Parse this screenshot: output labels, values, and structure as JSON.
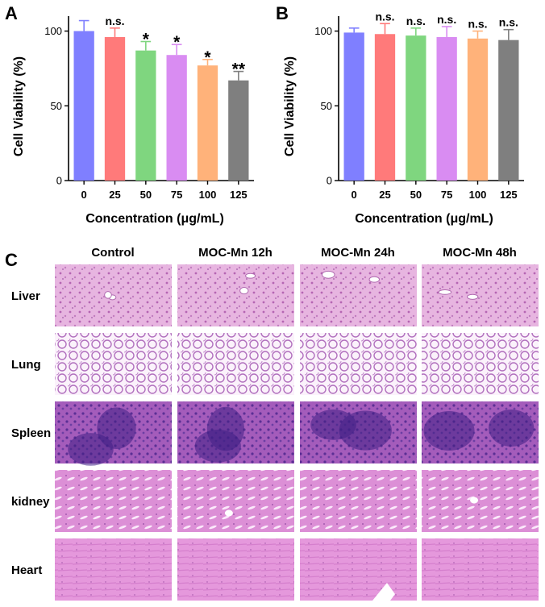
{
  "panel_labels": {
    "a": "A",
    "b": "B",
    "c": "C"
  },
  "chart_data": [
    {
      "type": "bar",
      "panel": "A",
      "categories": [
        "0",
        "25",
        "50",
        "75",
        "100",
        "125"
      ],
      "values": [
        100,
        96,
        87,
        84,
        77,
        67
      ],
      "errors": [
        7,
        6,
        6,
        7,
        4,
        6
      ],
      "significance": [
        "",
        "n.s.",
        "*",
        "*",
        "*",
        "**"
      ],
      "colors": [
        "#7f7fff",
        "#ff7a7a",
        "#7fd67f",
        "#d98cf2",
        "#ffb27a",
        "#7f7f7f"
      ],
      "title": "",
      "xlabel": "Concentration (μg/mL)",
      "ylabel": "Cell Viability (%)",
      "ylim": [
        0,
        110
      ],
      "yticks": [
        "0",
        "50",
        "100"
      ],
      "grid": false
    },
    {
      "type": "bar",
      "panel": "B",
      "categories": [
        "0",
        "25",
        "50",
        "75",
        "100",
        "125"
      ],
      "values": [
        99,
        98,
        97,
        96,
        95,
        94
      ],
      "errors": [
        3,
        7,
        5,
        7,
        5,
        7
      ],
      "significance": [
        "",
        "n.s.",
        "n.s.",
        "n.s.",
        "n.s.",
        "n.s."
      ],
      "colors": [
        "#7f7fff",
        "#ff7a7a",
        "#7fd67f",
        "#d98cf2",
        "#ffb27a",
        "#7f7f7f"
      ],
      "title": "",
      "xlabel": "Concentration (μg/mL)",
      "ylabel": "Cell Viability (%)",
      "ylim": [
        0,
        110
      ],
      "yticks": [
        "0",
        "50",
        "100"
      ],
      "grid": false
    }
  ],
  "histology": {
    "columns": [
      "Control",
      "MOC-Mn 12h",
      "MOC-Mn 24h",
      "MOC-Mn 48h"
    ],
    "rows": [
      {
        "label": "Liver",
        "tissue": "liver"
      },
      {
        "label": "Lung",
        "tissue": "lung"
      },
      {
        "label": "Spleen",
        "tissue": "spleen"
      },
      {
        "label": "kidney",
        "tissue": "kidney"
      },
      {
        "label": "Heart",
        "tissue": "heart"
      }
    ]
  }
}
